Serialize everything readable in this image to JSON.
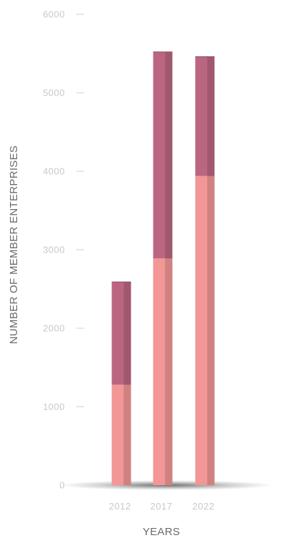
{
  "chart_data": {
    "type": "bar",
    "stacked": true,
    "categories": [
      "2012",
      "2017",
      "2022"
    ],
    "series": [
      {
        "values": [
          1280,
          2890,
          3940
        ],
        "color": "#f29696"
      },
      {
        "values": [
          1310,
          2630,
          1520
        ],
        "color": "#bb6680"
      }
    ],
    "totals": [
      2590,
      5520,
      5460
    ],
    "xlabel": "YEARS",
    "ylabel": "NUMBER OF MEMBER ENTERPRISES",
    "ylim": [
      0,
      6000
    ],
    "yticks": [
      0,
      1000,
      2000,
      3000,
      4000,
      5000,
      6000
    ],
    "grid": false,
    "legend": "none"
  },
  "colors": {
    "tick_text": "#c8c8c8",
    "axis_title": "#6a6a6a",
    "tick_mark": "#cfcfcf"
  }
}
